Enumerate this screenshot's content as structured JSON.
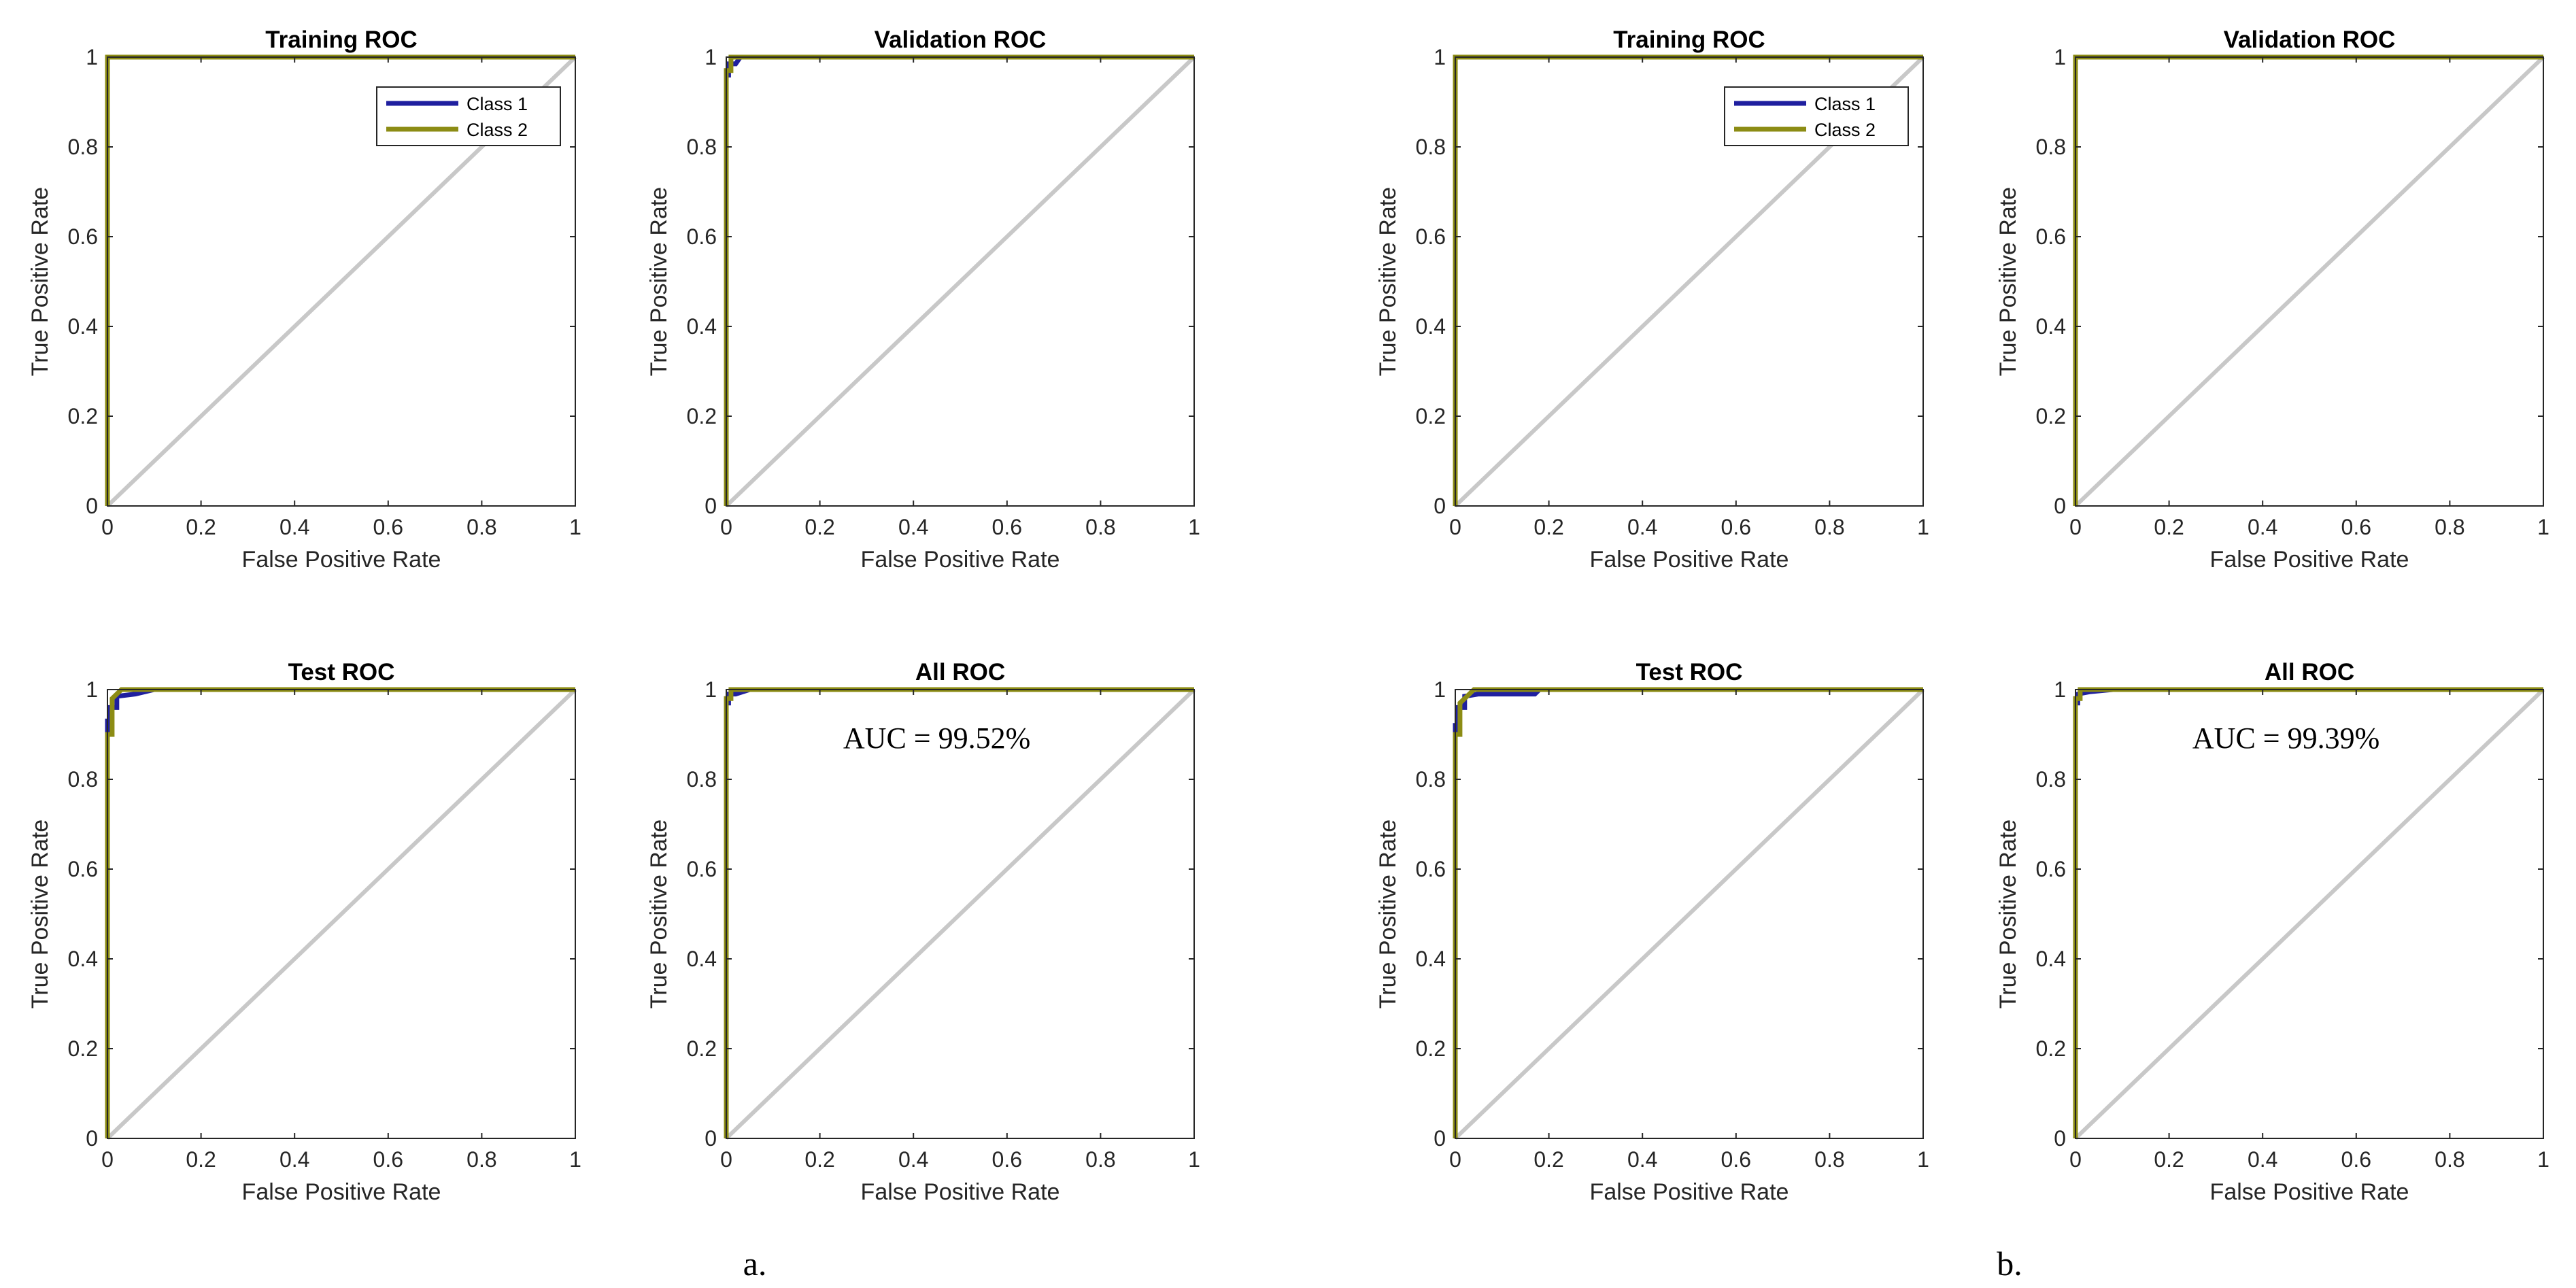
{
  "chart_data": [
    {
      "type": "line",
      "group": "a.",
      "title": "Training ROC",
      "xlabel": "False Positive Rate",
      "ylabel": "True Positive Rate",
      "xlim": [
        0,
        1
      ],
      "ylim": [
        0,
        1
      ],
      "xticks": [
        "0",
        "0.2",
        "0.4",
        "0.6",
        "0.8",
        "1"
      ],
      "yticks": [
        "0",
        "0.2",
        "0.4",
        "0.6",
        "0.8",
        "1"
      ],
      "legend": [
        "Class 1",
        "Class 2"
      ],
      "legend_position": "top-right",
      "series": [
        {
          "name": "Class 1",
          "color": "#1f1f9f",
          "x": [
            0,
            0,
            1
          ],
          "y": [
            0,
            1,
            1
          ]
        },
        {
          "name": "Class 2",
          "color": "#8c8c14",
          "x": [
            0,
            0,
            1
          ],
          "y": [
            0,
            1,
            1
          ]
        }
      ],
      "diagonal": {
        "color": "#c8c8c8",
        "x": [
          0,
          1
        ],
        "y": [
          0,
          1
        ]
      }
    },
    {
      "type": "line",
      "group": "a.",
      "title": "Validation ROC",
      "xlabel": "False Positive Rate",
      "ylabel": "True Positive Rate",
      "xlim": [
        0,
        1
      ],
      "ylim": [
        0,
        1
      ],
      "xticks": [
        "0",
        "0.2",
        "0.4",
        "0.6",
        "0.8",
        "1"
      ],
      "yticks": [
        "0",
        "0.2",
        "0.4",
        "0.6",
        "0.8",
        "1"
      ],
      "series": [
        {
          "name": "Class 1",
          "color": "#1f1f9f",
          "x": [
            0,
            0,
            0.005,
            0.005,
            0.02,
            0.03,
            1
          ],
          "y": [
            0,
            0.96,
            0.96,
            0.985,
            0.985,
            1,
            1
          ]
        },
        {
          "name": "Class 2",
          "color": "#8c8c14",
          "x": [
            0,
            0,
            0.01,
            0.01,
            1
          ],
          "y": [
            0,
            0.97,
            0.97,
            1,
            1
          ]
        }
      ],
      "diagonal": {
        "color": "#c8c8c8",
        "x": [
          0,
          1
        ],
        "y": [
          0,
          1
        ]
      }
    },
    {
      "type": "line",
      "group": "a.",
      "title": "Test ROC",
      "xlabel": "False Positive Rate",
      "ylabel": "True Positive Rate",
      "xlim": [
        0,
        1
      ],
      "ylim": [
        0,
        1
      ],
      "xticks": [
        "0",
        "0.2",
        "0.4",
        "0.6",
        "0.8",
        "1"
      ],
      "yticks": [
        "0",
        "0.2",
        "0.4",
        "0.6",
        "0.8",
        "1"
      ],
      "series": [
        {
          "name": "Class 1",
          "color": "#1f1f9f",
          "x": [
            0,
            0,
            0.005,
            0.005,
            0.02,
            0.02,
            0.06,
            0.1,
            1
          ],
          "y": [
            0,
            0.93,
            0.93,
            0.96,
            0.96,
            0.985,
            0.99,
            1,
            1
          ]
        },
        {
          "name": "Class 2",
          "color": "#8c8c14",
          "x": [
            0,
            0,
            0.01,
            0.01,
            0.03,
            1
          ],
          "y": [
            0,
            0.9,
            0.9,
            0.98,
            1,
            1
          ]
        }
      ],
      "diagonal": {
        "color": "#c8c8c8",
        "x": [
          0,
          1
        ],
        "y": [
          0,
          1
        ]
      }
    },
    {
      "type": "line",
      "group": "a.",
      "title": "All ROC",
      "xlabel": "False Positive Rate",
      "ylabel": "True Positive Rate",
      "xlim": [
        0,
        1
      ],
      "ylim": [
        0,
        1
      ],
      "xticks": [
        "0",
        "0.2",
        "0.4",
        "0.6",
        "0.8",
        "1"
      ],
      "yticks": [
        "0",
        "0.2",
        "0.4",
        "0.6",
        "0.8",
        "1"
      ],
      "annotation": "AUC = 99.52%",
      "series": [
        {
          "name": "Class 1",
          "color": "#1f1f9f",
          "x": [
            0,
            0,
            0.005,
            0.005,
            0.02,
            0.05,
            1
          ],
          "y": [
            0,
            0.97,
            0.97,
            0.99,
            0.99,
            1,
            1
          ]
        },
        {
          "name": "Class 2",
          "color": "#8c8c14",
          "x": [
            0,
            0,
            0.01,
            0.01,
            1
          ],
          "y": [
            0,
            0.98,
            0.98,
            1,
            1
          ]
        }
      ],
      "diagonal": {
        "color": "#c8c8c8",
        "x": [
          0,
          1
        ],
        "y": [
          0,
          1
        ]
      }
    },
    {
      "type": "line",
      "group": "b.",
      "title": "Training ROC",
      "xlabel": "False Positive Rate",
      "ylabel": "True Positive Rate",
      "xlim": [
        0,
        1
      ],
      "ylim": [
        0,
        1
      ],
      "xticks": [
        "0",
        "0.2",
        "0.4",
        "0.6",
        "0.8",
        "1"
      ],
      "yticks": [
        "0",
        "0.2",
        "0.4",
        "0.6",
        "0.8",
        "1"
      ],
      "legend": [
        "Class 1",
        "Class 2"
      ],
      "legend_position": "top-right",
      "series": [
        {
          "name": "Class 1",
          "color": "#1f1f9f",
          "x": [
            0,
            0,
            1
          ],
          "y": [
            0,
            1,
            1
          ]
        },
        {
          "name": "Class 2",
          "color": "#8c8c14",
          "x": [
            0,
            0,
            1
          ],
          "y": [
            0,
            1,
            1
          ]
        }
      ],
      "diagonal": {
        "color": "#c8c8c8",
        "x": [
          0,
          1
        ],
        "y": [
          0,
          1
        ]
      }
    },
    {
      "type": "line",
      "group": "b.",
      "title": "Validation ROC",
      "xlabel": "False Positive Rate",
      "ylabel": "True Positive Rate",
      "xlim": [
        0,
        1
      ],
      "ylim": [
        0,
        1
      ],
      "xticks": [
        "0",
        "0.2",
        "0.4",
        "0.6",
        "0.8",
        "1"
      ],
      "yticks": [
        "0",
        "0.2",
        "0.4",
        "0.6",
        "0.8",
        "1"
      ],
      "series": [
        {
          "name": "Class 1",
          "color": "#1f1f9f",
          "x": [
            0,
            0,
            1
          ],
          "y": [
            0,
            1,
            1
          ]
        },
        {
          "name": "Class 2",
          "color": "#8c8c14",
          "x": [
            0,
            0,
            1
          ],
          "y": [
            0,
            1,
            1
          ]
        }
      ],
      "diagonal": {
        "color": "#c8c8c8",
        "x": [
          0,
          1
        ],
        "y": [
          0,
          1
        ]
      }
    },
    {
      "type": "line",
      "group": "b.",
      "title": "Test ROC",
      "xlabel": "False Positive Rate",
      "ylabel": "True Positive Rate",
      "xlim": [
        0,
        1
      ],
      "ylim": [
        0,
        1
      ],
      "xticks": [
        "0",
        "0.2",
        "0.4",
        "0.6",
        "0.8",
        "1"
      ],
      "yticks": [
        "0",
        "0.2",
        "0.4",
        "0.6",
        "0.8",
        "1"
      ],
      "series": [
        {
          "name": "Class 1",
          "color": "#1f1f9f",
          "x": [
            0,
            0,
            0.005,
            0.005,
            0.02,
            0.02,
            0.05,
            0.17,
            0.18,
            1
          ],
          "y": [
            0,
            0.92,
            0.92,
            0.96,
            0.96,
            0.985,
            0.99,
            0.99,
            1,
            1
          ]
        },
        {
          "name": "Class 2",
          "color": "#8c8c14",
          "x": [
            0,
            0,
            0.01,
            0.01,
            0.04,
            1
          ],
          "y": [
            0,
            0.9,
            0.9,
            0.97,
            1,
            1
          ]
        }
      ],
      "diagonal": {
        "color": "#c8c8c8",
        "x": [
          0,
          1
        ],
        "y": [
          0,
          1
        ]
      }
    },
    {
      "type": "line",
      "group": "b.",
      "title": "All ROC",
      "xlabel": "False Positive Rate",
      "ylabel": "True Positive Rate",
      "xlim": [
        0,
        1
      ],
      "ylim": [
        0,
        1
      ],
      "xticks": [
        "0",
        "0.2",
        "0.4",
        "0.6",
        "0.8",
        "1"
      ],
      "yticks": [
        "0",
        "0.2",
        "0.4",
        "0.6",
        "0.8",
        "1"
      ],
      "annotation": "AUC = 99.39%",
      "series": [
        {
          "name": "Class 1",
          "color": "#1f1f9f",
          "x": [
            0,
            0,
            0.005,
            0.005,
            0.03,
            0.08,
            1
          ],
          "y": [
            0,
            0.97,
            0.97,
            0.99,
            0.995,
            1,
            1
          ]
        },
        {
          "name": "Class 2",
          "color": "#8c8c14",
          "x": [
            0,
            0,
            0.01,
            0.01,
            1
          ],
          "y": [
            0,
            0.98,
            0.98,
            1,
            1
          ]
        }
      ],
      "diagonal": {
        "color": "#c8c8c8",
        "x": [
          0,
          1
        ],
        "y": [
          0,
          1
        ]
      }
    }
  ],
  "panel_labels": [
    "a.",
    "b."
  ]
}
